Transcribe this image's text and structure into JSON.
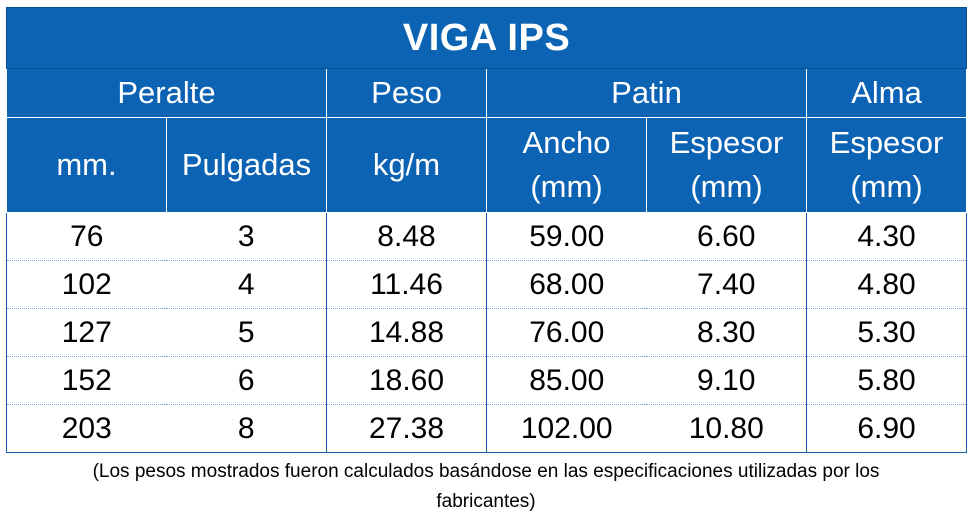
{
  "title": "VIGA IPS",
  "group_headers": {
    "peralte": "Peralte",
    "peso": "Peso",
    "patin": "Patin",
    "alma": "Alma"
  },
  "sub_headers": {
    "mm": "mm.",
    "pulgadas": "Pulgadas",
    "kgm": "kg/m",
    "ancho_1": "Ancho",
    "ancho_2": "(mm)",
    "espesor_patin_1": "Espesor",
    "espesor_patin_2": "(mm)",
    "espesor_alma_1": "Espesor",
    "espesor_alma_2": "(mm)"
  },
  "rows": [
    [
      "76",
      "3",
      "8.48",
      "59.00",
      "6.60",
      "4.30"
    ],
    [
      "102",
      "4",
      "11.46",
      "68.00",
      "7.40",
      "4.80"
    ],
    [
      "127",
      "5",
      "14.88",
      "76.00",
      "8.30",
      "5.30"
    ],
    [
      "152",
      "6",
      "18.60",
      "85.00",
      "9.10",
      "5.80"
    ],
    [
      "203",
      "8",
      "27.38",
      "102.00",
      "10.80",
      "6.90"
    ]
  ],
  "footnote": {
    "line1": "(Los pesos mostrados fueron calculados basándose en las especificaciones utilizadas por los",
    "line2": "fabricantes)"
  },
  "colors": {
    "header_blue": "#0c63b4",
    "header_text": "#ffffff",
    "grid_blue": "#1b5fa8"
  }
}
